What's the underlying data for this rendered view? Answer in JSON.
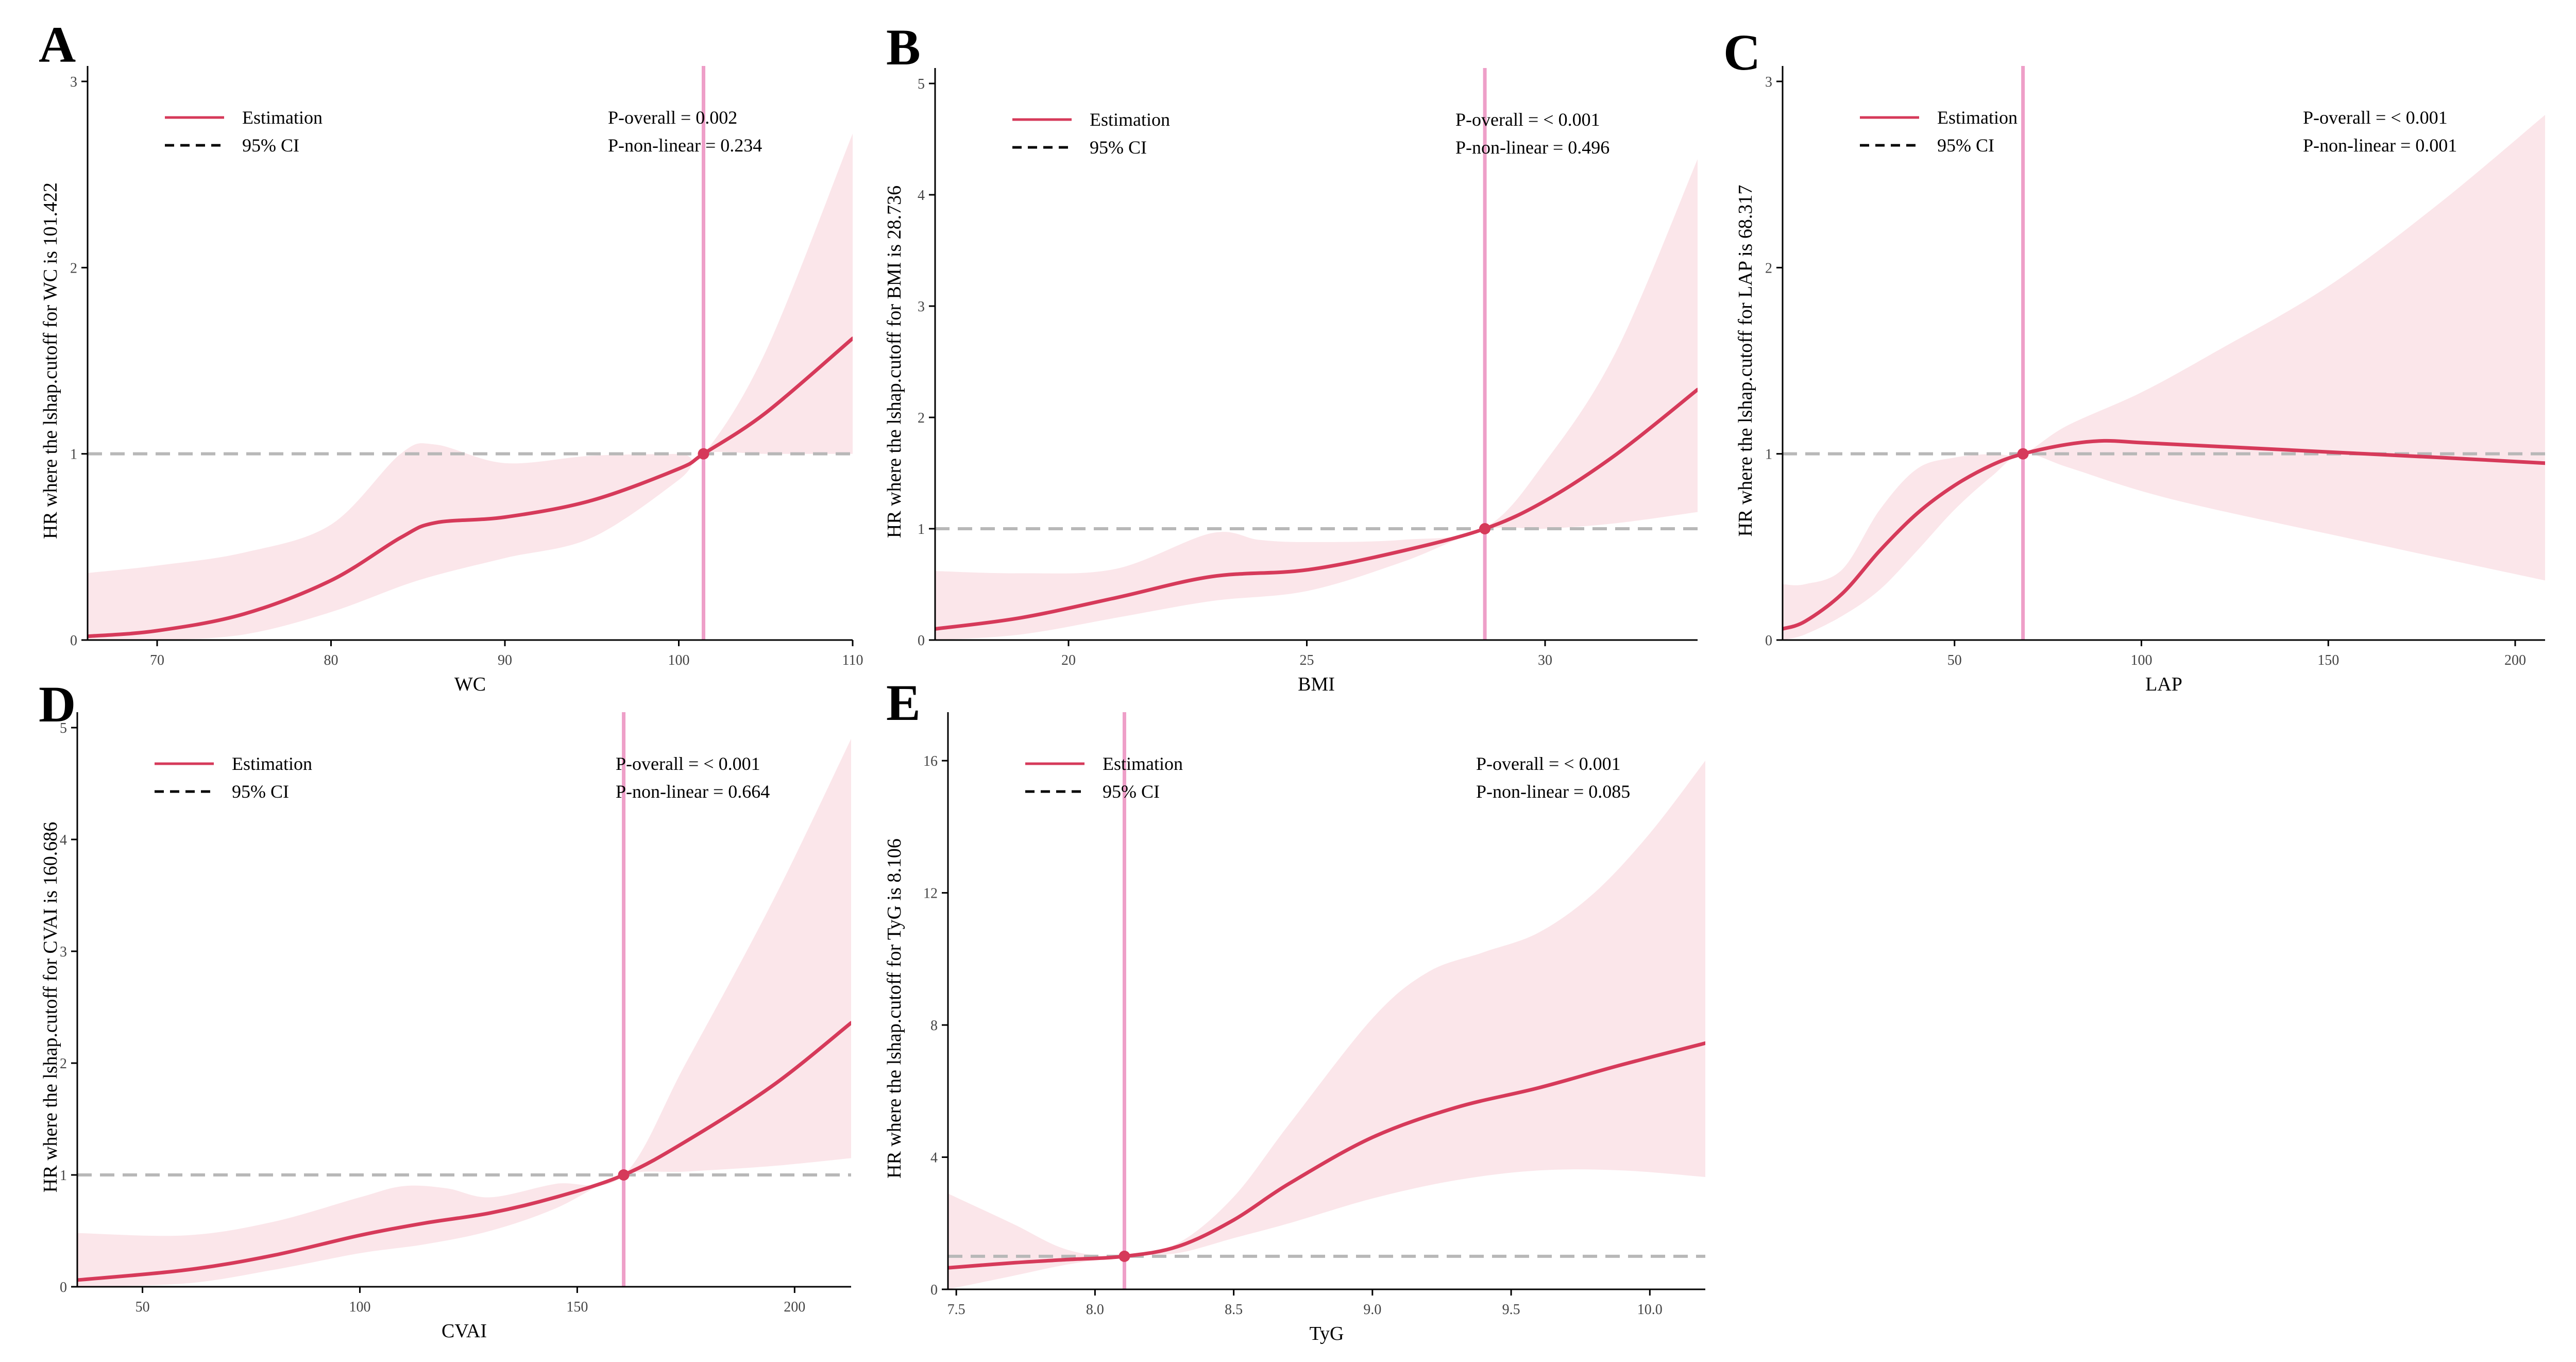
{
  "colors": {
    "estimate": "#d63a5a",
    "ci_fill": "#fbe6ea",
    "cutoff": "#ee9fc8",
    "reference": "#b8b8b8",
    "axis": "#000000"
  },
  "chart_data": [
    {
      "id": "A",
      "panel_label": "A",
      "type": "line",
      "title": "",
      "xlabel": "WC",
      "ylabel": "HR where the lshap.cutoff for WC is 101.422",
      "xlim": [
        66,
        110
      ],
      "ylim": [
        0,
        3
      ],
      "xticks": [
        70,
        80,
        90,
        100,
        110
      ],
      "yticks": [
        0,
        1,
        2,
        3
      ],
      "cutoff": 101.422,
      "reference_hr": 1,
      "legend": {
        "estimation": "Estimation",
        "ci": "95% CI"
      },
      "p_overall": "P-overall = 0.002",
      "p_nonlinear": "P-non-linear = 0.234",
      "series": [
        {
          "name": "Estimation",
          "x": [
            66,
            70,
            75,
            80,
            84,
            86,
            90,
            95,
            100,
            101.422,
            105,
            110
          ],
          "y": [
            0.02,
            0.05,
            0.14,
            0.32,
            0.55,
            0.63,
            0.66,
            0.75,
            0.92,
            1.0,
            1.22,
            1.62
          ]
        },
        {
          "name": "95% CI lower",
          "x": [
            66,
            70,
            75,
            80,
            85,
            90,
            95,
            100,
            101.422,
            105,
            110
          ],
          "y": [
            0.0,
            0.0,
            0.03,
            0.15,
            0.32,
            0.44,
            0.55,
            0.86,
            1.0,
            1.0,
            1.0
          ]
        },
        {
          "name": "95% CI upper",
          "x": [
            66,
            70,
            75,
            80,
            84,
            86,
            90,
            95,
            100,
            101.422,
            105,
            110
          ],
          "y": [
            0.36,
            0.4,
            0.47,
            0.62,
            1.0,
            1.05,
            0.95,
            0.99,
            1.0,
            1.0,
            1.55,
            2.72
          ]
        }
      ]
    },
    {
      "id": "B",
      "panel_label": "B",
      "type": "line",
      "title": "",
      "xlabel": "BMI",
      "ylabel": "HR where the lshap.cutoff for BMI is 28.736",
      "xlim": [
        17.2,
        33.2
      ],
      "ylim": [
        0,
        5
      ],
      "xticks": [
        20,
        25,
        30
      ],
      "yticks": [
        0,
        1,
        2,
        3,
        4,
        5
      ],
      "cutoff": 28.736,
      "reference_hr": 1,
      "legend": {
        "estimation": "Estimation",
        "ci": "95% CI"
      },
      "p_overall": "P-overall = < 0.001",
      "p_nonlinear": "P-non-linear = 0.496",
      "series": [
        {
          "name": "Estimation",
          "x": [
            17.2,
            19,
            21,
            23,
            25,
            27,
            28.736,
            30,
            31.5,
            33.2
          ],
          "y": [
            0.1,
            0.2,
            0.38,
            0.57,
            0.63,
            0.8,
            1.0,
            1.25,
            1.67,
            2.25
          ]
        },
        {
          "name": "95% CI lower",
          "x": [
            17.2,
            19,
            21,
            23,
            25,
            27,
            28.736,
            30,
            31.5,
            33.2
          ],
          "y": [
            0.0,
            0.05,
            0.2,
            0.35,
            0.44,
            0.7,
            0.99,
            1.0,
            1.05,
            1.15
          ]
        },
        {
          "name": "95% CI upper",
          "x": [
            17.2,
            19,
            21,
            23,
            24,
            25,
            27,
            28.736,
            30,
            31.5,
            33.2
          ],
          "y": [
            0.62,
            0.6,
            0.64,
            0.96,
            0.9,
            0.88,
            0.9,
            1.01,
            1.6,
            2.6,
            4.32
          ]
        }
      ]
    },
    {
      "id": "C",
      "panel_label": "C",
      "type": "line",
      "title": "",
      "xlabel": "LAP",
      "ylabel": "HR where the lshap.cutoff for LAP is 68.317",
      "xlim": [
        4,
        208
      ],
      "ylim": [
        0,
        3
      ],
      "xticks": [
        50,
        100,
        150,
        200
      ],
      "yticks": [
        0,
        1,
        2,
        3
      ],
      "cutoff": 68.317,
      "reference_hr": 1,
      "legend": {
        "estimation": "Estimation",
        "ci": "95% CI"
      },
      "p_overall": "P-overall = < 0.001",
      "p_nonlinear": "P-non-linear = 0.001",
      "series": [
        {
          "name": "Estimation",
          "x": [
            4,
            10,
            20,
            30,
            40,
            50,
            60,
            68.317,
            80,
            90,
            100,
            120,
            150,
            180,
            208
          ],
          "y": [
            0.06,
            0.1,
            0.25,
            0.48,
            0.68,
            0.83,
            0.94,
            1.0,
            1.05,
            1.07,
            1.06,
            1.04,
            1.01,
            0.98,
            0.95
          ]
        },
        {
          "name": "95% CI lower",
          "x": [
            4,
            10,
            20,
            30,
            40,
            50,
            60,
            68.317,
            80,
            100,
            120,
            150,
            180,
            208
          ],
          "y": [
            0.0,
            0.03,
            0.13,
            0.27,
            0.48,
            0.7,
            0.88,
            1.0,
            0.93,
            0.8,
            0.7,
            0.57,
            0.44,
            0.32
          ]
        },
        {
          "name": "95% CI upper",
          "x": [
            4,
            10,
            20,
            30,
            40,
            50,
            60,
            68.317,
            80,
            100,
            120,
            150,
            180,
            208
          ],
          "y": [
            0.3,
            0.3,
            0.38,
            0.7,
            0.92,
            0.98,
            1.0,
            1.0,
            1.15,
            1.33,
            1.55,
            1.9,
            2.35,
            2.82
          ]
        }
      ]
    },
    {
      "id": "D",
      "panel_label": "D",
      "type": "line",
      "title": "",
      "xlabel": "CVAI",
      "ylabel": "HR where the lshap.cutoff for CVAI is 160.686",
      "xlim": [
        35,
        213
      ],
      "ylim": [
        0,
        5
      ],
      "xticks": [
        50,
        100,
        150,
        200
      ],
      "yticks": [
        0,
        1,
        2,
        3,
        4,
        5
      ],
      "cutoff": 160.686,
      "reference_hr": 1,
      "legend": {
        "estimation": "Estimation",
        "ci": "95% CI"
      },
      "p_overall": "P-overall = < 0.001",
      "p_nonlinear": "P-non-linear = 0.664",
      "series": [
        {
          "name": "Estimation",
          "x": [
            35,
            60,
            80,
            100,
            115,
            130,
            145,
            160.686,
            175,
            195,
            213
          ],
          "y": [
            0.06,
            0.15,
            0.28,
            0.46,
            0.57,
            0.66,
            0.8,
            1.0,
            1.3,
            1.8,
            2.36
          ]
        },
        {
          "name": "95% CI lower",
          "x": [
            35,
            60,
            80,
            100,
            115,
            130,
            145,
            160.686,
            175,
            195,
            213
          ],
          "y": [
            0.0,
            0.03,
            0.15,
            0.3,
            0.38,
            0.5,
            0.7,
            1.0,
            1.03,
            1.08,
            1.15
          ]
        },
        {
          "name": "95% CI upper",
          "x": [
            35,
            60,
            80,
            100,
            110,
            120,
            130,
            145,
            160.686,
            175,
            195,
            213
          ],
          "y": [
            0.48,
            0.46,
            0.58,
            0.8,
            0.9,
            0.88,
            0.8,
            0.92,
            1.0,
            2.0,
            3.45,
            4.9
          ]
        }
      ]
    },
    {
      "id": "E",
      "panel_label": "E",
      "type": "line",
      "title": "",
      "xlabel": "TyG",
      "ylabel": "HR where the lshap.cutoff for TyG is 8.106",
      "xlim": [
        7.47,
        10.2
      ],
      "ylim": [
        0,
        17
      ],
      "xticks": [
        7.5,
        8.0,
        8.5,
        9.0,
        9.5,
        10.0
      ],
      "yticks": [
        0,
        4,
        8,
        12,
        16
      ],
      "cutoff": 8.106,
      "reference_hr": 1,
      "legend": {
        "estimation": "Estimation",
        "ci": "95% CI"
      },
      "p_overall": "P-overall = < 0.001",
      "p_nonlinear": "P-non-linear = 0.085",
      "series": [
        {
          "name": "Estimation",
          "x": [
            7.47,
            7.7,
            7.9,
            8.106,
            8.3,
            8.5,
            8.7,
            9.0,
            9.3,
            9.6,
            9.9,
            10.2
          ],
          "y": [
            0.65,
            0.8,
            0.9,
            1.0,
            1.3,
            2.1,
            3.2,
            4.6,
            5.5,
            6.1,
            6.8,
            7.45
          ]
        },
        {
          "name": "95% CI lower",
          "x": [
            7.47,
            7.7,
            7.9,
            8.106,
            8.3,
            8.5,
            8.7,
            9.0,
            9.3,
            9.6,
            9.9,
            10.2
          ],
          "y": [
            0.0,
            0.4,
            0.75,
            1.0,
            1.1,
            1.55,
            2.0,
            2.75,
            3.3,
            3.6,
            3.6,
            3.4
          ]
        },
        {
          "name": "95% CI upper",
          "x": [
            7.47,
            7.7,
            7.9,
            8.106,
            8.3,
            8.5,
            8.7,
            9.0,
            9.2,
            9.4,
            9.6,
            9.8,
            10.0,
            10.2
          ],
          "y": [
            2.9,
            2.0,
            1.2,
            1.0,
            1.4,
            2.8,
            5.0,
            8.2,
            9.6,
            10.2,
            10.8,
            12.0,
            13.8,
            16.0
          ]
        }
      ]
    }
  ]
}
